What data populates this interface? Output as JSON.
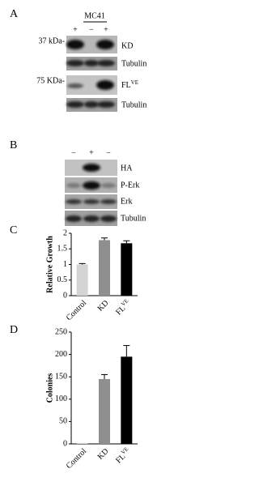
{
  "panel_a": {
    "panel_label": "A",
    "cell_line": "MC41",
    "lanes": [
      "+",
      "−",
      "+"
    ],
    "rows": [
      {
        "label": "KD",
        "marker": "37 kDa-"
      },
      {
        "label": "Tubulin"
      },
      {
        "label": "FL",
        "sup": "VE",
        "marker": "75 KDa-"
      },
      {
        "label": "Tubulin"
      }
    ]
  },
  "panel_b": {
    "panel_label": "B",
    "lanes": [
      "−",
      "+",
      "−"
    ],
    "rows": [
      {
        "label": "HA"
      },
      {
        "label": "P-Erk"
      },
      {
        "label": "Erk"
      },
      {
        "label": "Tubulin"
      }
    ]
  },
  "chart_data": [
    {
      "type": "bar",
      "panel_label": "C",
      "y_label": "Relative Growth",
      "categories": [
        "Control",
        "KD",
        "FL"
      ],
      "category_superscripts": [
        null,
        null,
        "VE"
      ],
      "values": [
        1.0,
        1.78,
        1.68
      ],
      "errors": [
        0.03,
        0.07,
        0.08
      ],
      "colors": [
        "#d4d4d4",
        "#8f8f8f",
        "#000000"
      ],
      "ylim": [
        0,
        2
      ],
      "yticks": [
        0,
        0.5,
        1,
        1.5,
        2
      ]
    },
    {
      "type": "bar",
      "panel_label": "D",
      "y_label": "Colonies",
      "categories": [
        "Control",
        "KD",
        "FL"
      ],
      "category_superscripts": [
        null,
        null,
        "VE"
      ],
      "values": [
        2,
        145,
        195
      ],
      "errors": [
        0,
        10,
        25
      ],
      "colors": [
        "#d4d4d4",
        "#8f8f8f",
        "#000000"
      ],
      "ylim": [
        0,
        250
      ],
      "yticks": [
        0,
        50,
        100,
        150,
        200,
        250
      ]
    }
  ]
}
